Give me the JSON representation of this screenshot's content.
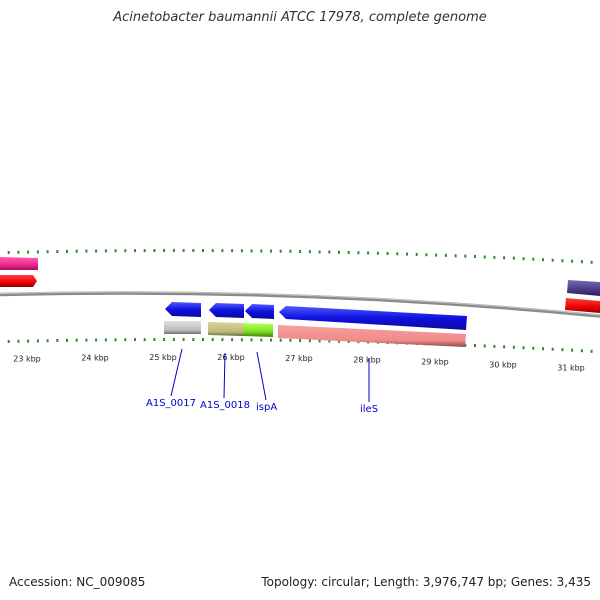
{
  "title": "Acinetobacter baumannii ATCC 17978, complete genome",
  "footer": {
    "accession": "Accession: NC_009085",
    "summary": "Topology: circular; Length: 3,976,747 bp; Genes: 3,435"
  },
  "scale": {
    "unit": "kbp",
    "ticks": [
      {
        "kbp": 23,
        "label": "23 kbp"
      },
      {
        "kbp": 24,
        "label": "24 kbp"
      },
      {
        "kbp": 25,
        "label": "25 kbp"
      },
      {
        "kbp": 26,
        "label": "26 kbp"
      },
      {
        "kbp": 27,
        "label": "27 kbp"
      },
      {
        "kbp": 28,
        "label": "28 kbp"
      },
      {
        "kbp": 29,
        "label": "29 kbp"
      },
      {
        "kbp": 30,
        "label": "30 kbp"
      },
      {
        "kbp": 31,
        "label": "31 kbp"
      }
    ]
  },
  "colors": {
    "backbone": "#8a8a8a",
    "tick": "#2e8b2e",
    "strand_blue": "#1010e0",
    "label": "#0000cc"
  },
  "genes": [
    {
      "label": "A1S_0017",
      "name": "A1S_0017"
    },
    {
      "label": "A1S_0018",
      "name": "A1S_0018"
    },
    {
      "label": "ispA",
      "name": "IspA"
    },
    {
      "label": "ileS",
      "name": "ileS"
    }
  ]
}
